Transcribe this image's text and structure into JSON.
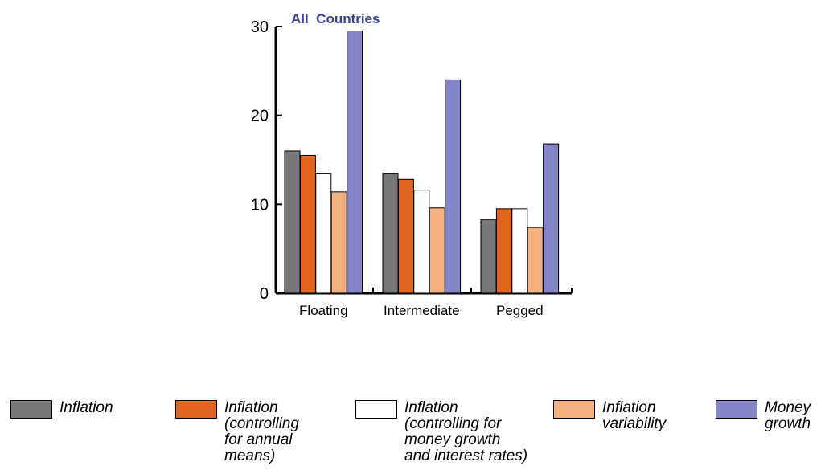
{
  "chart_data": {
    "type": "bar",
    "title": "All  Countries",
    "categories": [
      "Floating",
      "Intermediate",
      "Pegged"
    ],
    "ylim": [
      0,
      30
    ],
    "yticks": [
      0,
      10,
      20,
      30
    ],
    "series": [
      {
        "name": "Inflation",
        "values": [
          16.0,
          13.5,
          8.3
        ],
        "color": "#777777"
      },
      {
        "name": "Inflation\n(controlling\nfor annual\nmeans)",
        "values": [
          15.5,
          12.8,
          9.5
        ],
        "color": "#e06620"
      },
      {
        "name": "Inflation\n(controlling for\nmoney growth\nand interest rates)",
        "values": [
          13.5,
          11.6,
          9.5
        ],
        "color": "#ffffff"
      },
      {
        "name": "Inflation\nvariability",
        "values": [
          11.4,
          9.6,
          7.4
        ],
        "color": "#f4b07e"
      },
      {
        "name": "Money\ngrowth",
        "values": [
          29.5,
          24.0,
          16.8
        ],
        "color": "#8684c8"
      }
    ],
    "title_color": "#3a3f9e",
    "legend_placement": "bottom"
  }
}
